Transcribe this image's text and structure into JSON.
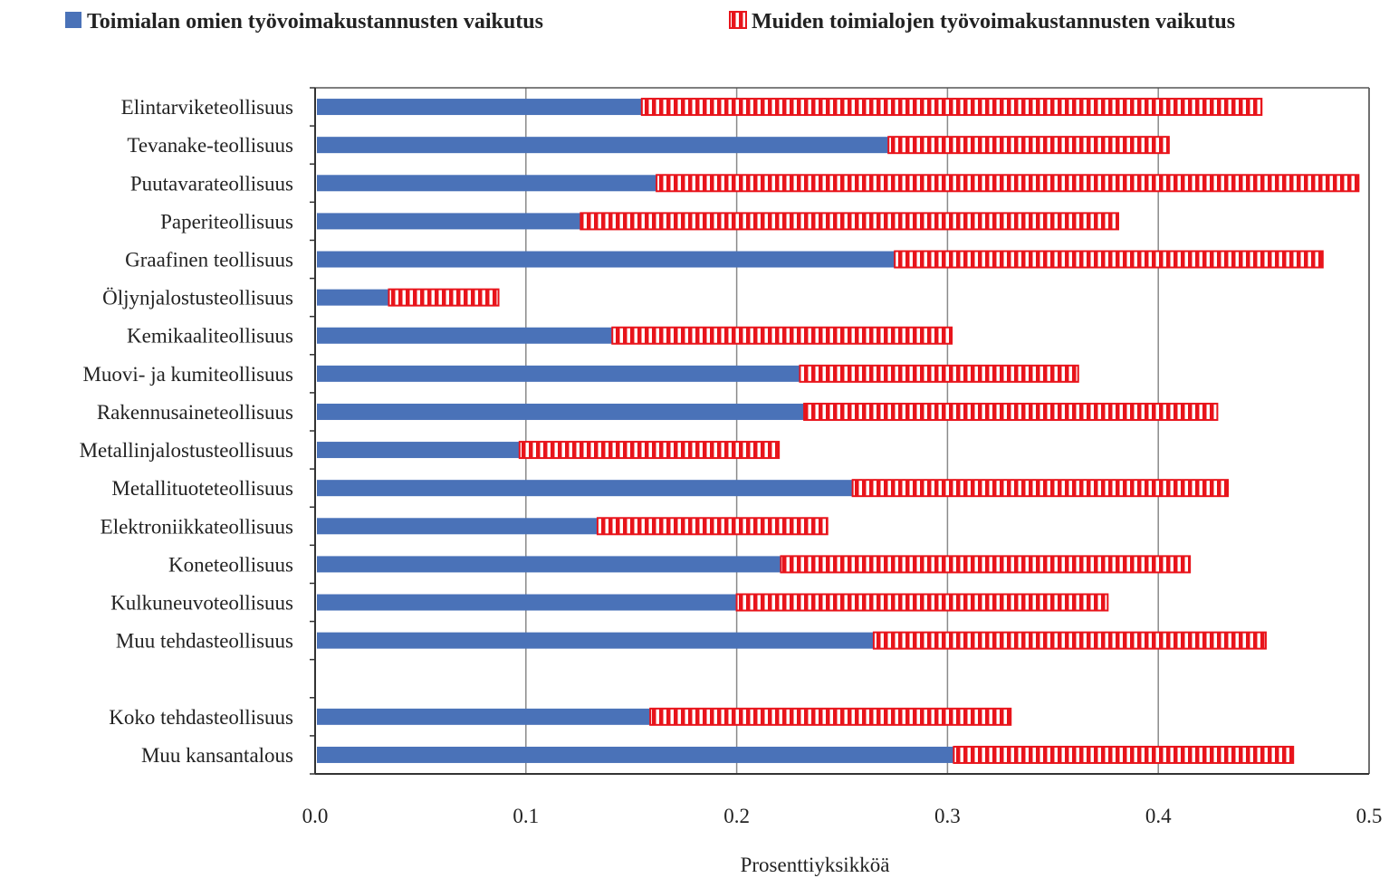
{
  "chart_data": {
    "type": "bar",
    "orientation": "horizontal",
    "stacked": true,
    "categories": [
      "Elintarviketeollisuus",
      "Tevanake-teollisuus",
      "Puutavarateollisuus",
      "Paperiteollisuus",
      "Graafinen teollisuus",
      "Öljynjalostusteollisuus",
      "Kemikaaliteollisuus",
      "Muovi- ja kumiteollisuus",
      "Rakennusaineteollisuus",
      "Metallinjalostusteollisuus",
      "Metallituoteteollisuus",
      "Elektroniikkateollisuus",
      "Koneteollisuus",
      "Kulkuneuvoteollisuus",
      "Muu tehdasteollisuus",
      "",
      "Koko tehdasteollisuus",
      "Muu kansantalous"
    ],
    "series": [
      {
        "name": "Toimialan omien työvoimakustannusten vaikutus",
        "color": "#4a72b8",
        "pattern": "solid",
        "values": [
          0.155,
          0.272,
          0.162,
          0.126,
          0.275,
          0.035,
          0.141,
          0.23,
          0.232,
          0.097,
          0.255,
          0.134,
          0.221,
          0.2,
          0.265,
          null,
          0.159,
          0.303
        ]
      },
      {
        "name": "Muiden toimialojen työvoimakustannusten vaikutus",
        "color": "#e8141b",
        "pattern": "vertical-stripes",
        "values": [
          0.294,
          0.133,
          0.333,
          0.255,
          0.203,
          0.052,
          0.161,
          0.132,
          0.196,
          0.123,
          0.178,
          0.109,
          0.194,
          0.176,
          0.186,
          null,
          0.171,
          0.161
        ]
      }
    ],
    "xlabel": "Prosenttiyksikköä",
    "xlim": [
      0,
      0.5
    ],
    "xticks": [
      "0.0",
      "0.1",
      "0.2",
      "0.3",
      "0.4",
      "0.5"
    ],
    "grid": "vertical",
    "legend_position": "top"
  }
}
